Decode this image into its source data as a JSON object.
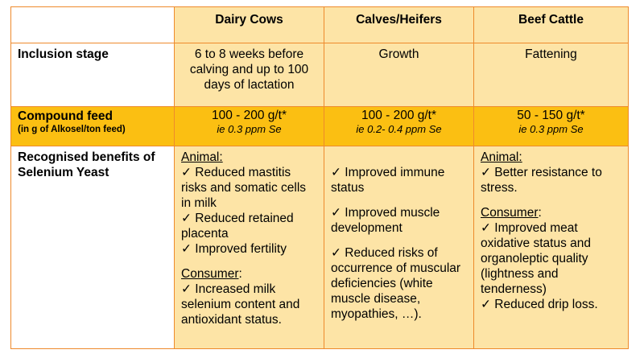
{
  "header": {
    "col1": "Dairy Cows",
    "col2": "Calves/Heifers",
    "col3": "Beef Cattle"
  },
  "inclusion": {
    "label": "Inclusion stage",
    "dairy": "6 to 8 weeks before calving and up to 100 days of lactation",
    "calves": "Growth",
    "beef": "Fattening"
  },
  "compound": {
    "label": "Compound feed",
    "sublabel": "(in g of Alkosel/ton feed)",
    "dairy_value": "100 - 200 g/t*",
    "dairy_note": "ie 0.3 ppm Se",
    "calves_value": "100 - 200 g/t*",
    "calves_note": "ie 0.2- 0.4 ppm Se",
    "beef_value": "50 - 150 g/t*",
    "beef_note": "ie 0.3 ppm Se"
  },
  "benefits": {
    "label": "Recognised benefits of Selenium Yeast",
    "dairy": {
      "animal_heading": "Animal:",
      "animal_items": [
        "✓ Reduced mastitis risks and somatic cells in milk",
        "✓ Reduced retained placenta",
        "✓ Improved fertility"
      ],
      "consumer_heading": "Consumer",
      "consumer_colon": ":",
      "consumer_items": [
        "✓ Increased milk selenium content and antioxidant status."
      ]
    },
    "calves": {
      "items": [
        "✓ Improved immune status",
        "✓ Improved muscle development",
        "✓ Reduced risks of occurrence of muscular deficiencies (white muscle disease, myopathies, …)."
      ]
    },
    "beef": {
      "animal_heading": "Animal:",
      "animal_items": [
        "✓ Better resistance to stress."
      ],
      "consumer_heading": "Consumer",
      "consumer_colon": ":",
      "consumer_items": [
        "✓ Improved meat oxidative status and organoleptic quality (lightness and tenderness)",
        "✓ Reduced drip loss."
      ]
    }
  }
}
